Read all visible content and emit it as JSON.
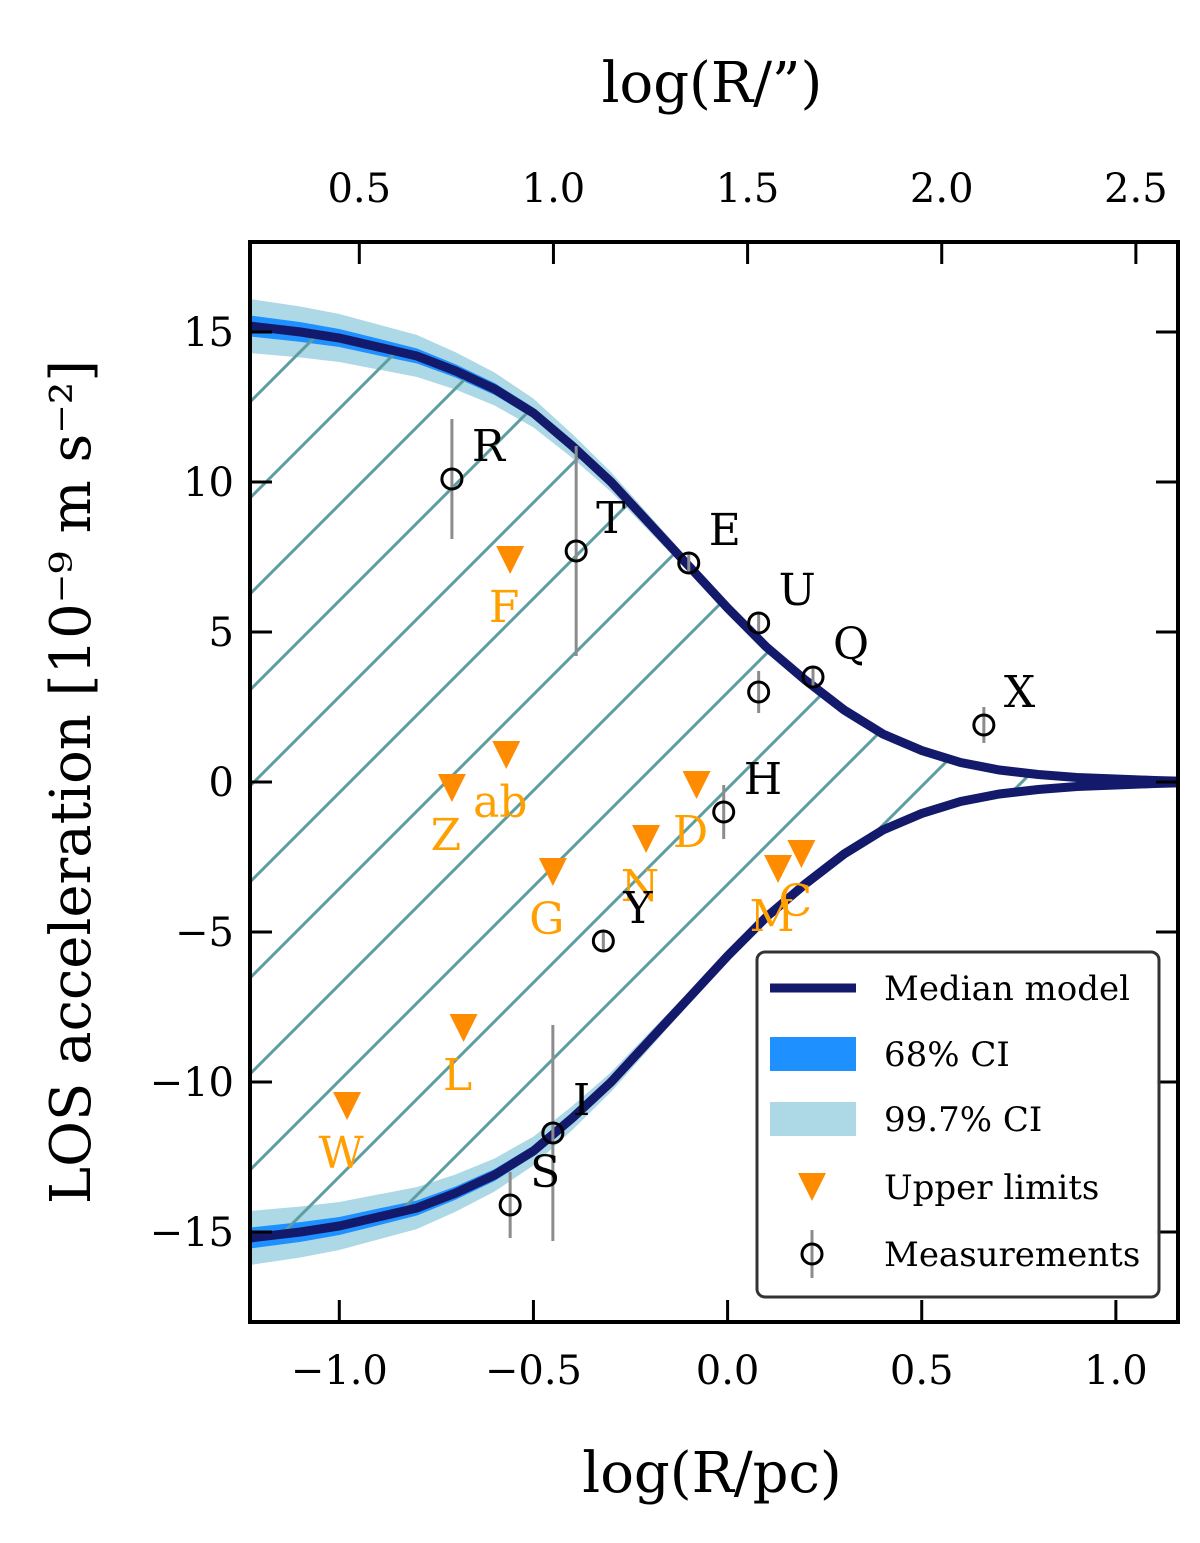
{
  "chart_data": {
    "type": "scatter",
    "xlabel": "log(R/pc)",
    "xlabel_top": "log(R/”)",
    "ylabel": "LOS acceleration [10⁻⁹ m s⁻²]",
    "xlim": [
      -1.23,
      1.16
    ],
    "ylim": [
      -18,
      18
    ],
    "xticks": [
      -1.0,
      -0.5,
      0.0,
      0.5,
      1.0
    ],
    "xtick_labels": [
      "−1.0",
      "−0.5",
      "0.0",
      "0.5",
      "1.0"
    ],
    "xticks_top": [
      0.5,
      1.0,
      1.5,
      2.0,
      2.5
    ],
    "xtick_labels_top": [
      "0.5",
      "1.0",
      "1.5",
      "2.0",
      "2.5"
    ],
    "yticks": [
      -15,
      -10,
      -5,
      0,
      5,
      10,
      15
    ],
    "ytick_labels": [
      "−15",
      "−10",
      "−5",
      "0",
      "5",
      "10",
      "15"
    ],
    "legend_position": "lower-right",
    "legend": [
      "Median model",
      "68% CI",
      "99.7% CI",
      "Upper limits",
      "Measurements"
    ],
    "colors": {
      "median": "#141a6b",
      "ci68": "#1e90ff",
      "ci997": "#add8e6",
      "upper": "#ff8c00",
      "upper_label": "#ffa000",
      "measure": "#000000",
      "errbar": "#8c8c8c",
      "hatch": "#5f9ea0"
    },
    "model": {
      "x": [
        -1.23,
        -1.1,
        -1.0,
        -0.9,
        -0.8,
        -0.7,
        -0.6,
        -0.5,
        -0.4,
        -0.3,
        -0.2,
        -0.1,
        0.0,
        0.1,
        0.2,
        0.3,
        0.4,
        0.5,
        0.6,
        0.7,
        0.8,
        0.9,
        1.0,
        1.1,
        1.16
      ],
      "median": [
        15.2,
        15.0,
        14.8,
        14.5,
        14.2,
        13.7,
        13.1,
        12.3,
        11.2,
        10.0,
        8.6,
        7.2,
        5.8,
        4.5,
        3.4,
        2.4,
        1.6,
        1.05,
        0.65,
        0.4,
        0.25,
        0.15,
        0.1,
        0.05,
        0.03
      ],
      "ci68_half": [
        0.35,
        0.33,
        0.3,
        0.28,
        0.25,
        0.22,
        0.2,
        0.18,
        0.16,
        0.14,
        0.12,
        0.1,
        0.08,
        0.07,
        0.06,
        0.05,
        0.04,
        0.03,
        0.02,
        0.02,
        0.01,
        0.01,
        0.01,
        0.01,
        0.01
      ],
      "ci997_half": [
        0.9,
        0.85,
        0.8,
        0.75,
        0.7,
        0.62,
        0.55,
        0.48,
        0.4,
        0.33,
        0.27,
        0.2,
        0.15,
        0.12,
        0.1,
        0.08,
        0.06,
        0.05,
        0.04,
        0.03,
        0.02,
        0.02,
        0.01,
        0.01,
        0.01
      ]
    },
    "measurements": [
      {
        "label": "R",
        "x": -0.71,
        "y": 10.1,
        "err": [
          2.0,
          2.0
        ]
      },
      {
        "label": "T",
        "x": -0.39,
        "y": 7.7,
        "err": [
          3.5,
          3.5
        ]
      },
      {
        "label": "E",
        "x": -0.1,
        "y": 7.3,
        "err": [
          0.3,
          0.3
        ]
      },
      {
        "label": "U",
        "x": 0.08,
        "y": 5.3,
        "err": [
          0.3,
          0.3
        ]
      },
      {
        "label": "Q",
        "x": 0.22,
        "y": 3.5,
        "err": [
          0.3,
          0.3
        ]
      },
      {
        "label": "X",
        "x": 0.66,
        "y": 1.9,
        "err": [
          0.6,
          0.6
        ]
      },
      {
        "label": "H",
        "x": -0.01,
        "y": -1.0,
        "err": [
          0.9,
          0.9
        ]
      },
      {
        "label": "Y",
        "x": -0.32,
        "y": -5.3,
        "err": [
          0.3,
          0.3
        ]
      },
      {
        "label": "I",
        "x": -0.45,
        "y": -11.7,
        "err": [
          3.6,
          3.6
        ]
      },
      {
        "label": "S",
        "x": -0.56,
        "y": -14.1,
        "err": [
          1.1,
          1.1
        ]
      },
      {
        "label": "",
        "x": 0.08,
        "y": 3.0,
        "err": [
          0.7,
          0.7
        ]
      }
    ],
    "upper_limits": [
      {
        "label": "F",
        "x": -0.56,
        "y": 7.4
      },
      {
        "label": "Z",
        "x": -0.71,
        "y": -0.2
      },
      {
        "label": "ab",
        "x": -0.57,
        "y": 0.9
      },
      {
        "label": "D",
        "x": -0.08,
        "y": -0.1
      },
      {
        "label": "N",
        "x": -0.21,
        "y": -1.9
      },
      {
        "label": "G",
        "x": -0.45,
        "y": -3.0
      },
      {
        "label": "C",
        "x": 0.19,
        "y": -2.4
      },
      {
        "label": "M",
        "x": 0.13,
        "y": -2.9
      },
      {
        "label": "L",
        "x": -0.68,
        "y": -8.2
      },
      {
        "label": "W",
        "x": -0.98,
        "y": -10.8
      }
    ]
  }
}
